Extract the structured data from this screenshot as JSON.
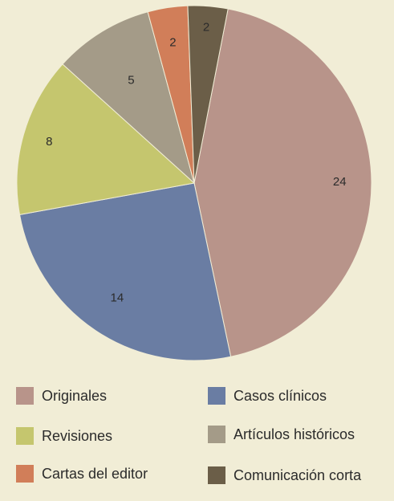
{
  "chart_data": {
    "type": "pie",
    "title": "",
    "slices": [
      {
        "label": "Originales",
        "value": 24,
        "color": "#b8948a"
      },
      {
        "label": "Casos clínicos",
        "value": 14,
        "color": "#6a7da3"
      },
      {
        "label": "Revisiones",
        "value": 8,
        "color": "#c5c66e"
      },
      {
        "label": "Artículos históricos",
        "value": 5,
        "color": "#a49b88"
      },
      {
        "label": "Cartas del editor",
        "value": 2,
        "color": "#d17e59"
      },
      {
        "label": "Comunicación corta",
        "value": 2,
        "color": "#6b5e48"
      }
    ],
    "start_angle_deg": 11,
    "direction": "clockwise",
    "legend_position": "bottom",
    "legend_columns": 2
  },
  "colors": {
    "background": "#f1edd6",
    "slice_border": "#f1edd6",
    "text": "#2b2b2b"
  }
}
